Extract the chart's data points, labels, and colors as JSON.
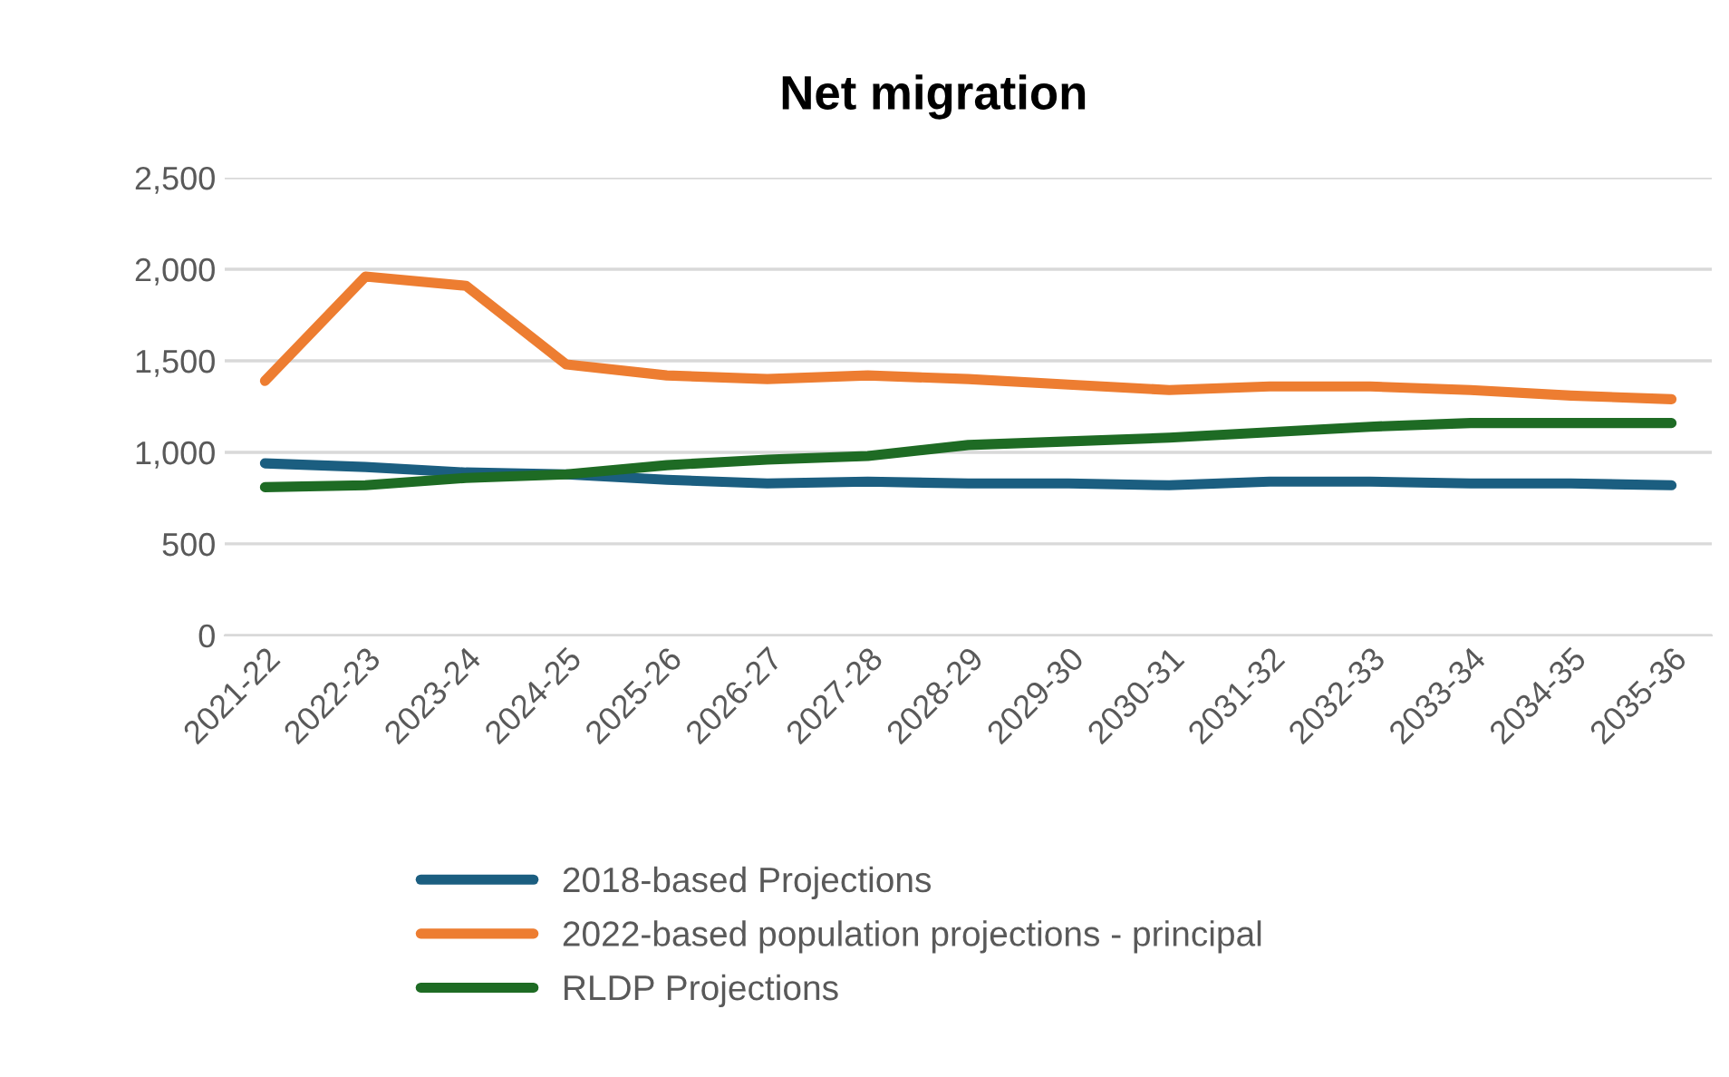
{
  "chart_data": {
    "type": "line",
    "title": "Net migration",
    "categories": [
      "2021-22",
      "2022-23",
      "2023-24",
      "2024-25",
      "2025-26",
      "2026-27",
      "2027-28",
      "2028-29",
      "2029-30",
      "2030-31",
      "2031-32",
      "2032-33",
      "2033-34",
      "2034-35",
      "2035-36"
    ],
    "series": [
      {
        "name": "2018-based Projections",
        "color": "#1b5e80",
        "values": [
          940,
          920,
          890,
          880,
          850,
          830,
          840,
          830,
          830,
          820,
          840,
          840,
          830,
          830,
          820
        ]
      },
      {
        "name": "2022-based population projections - principal",
        "color": "#ed7d31",
        "values": [
          1390,
          1960,
          1910,
          1480,
          1420,
          1400,
          1420,
          1400,
          1370,
          1340,
          1360,
          1360,
          1340,
          1310,
          1290
        ]
      },
      {
        "name": "RLDP Projections",
        "color": "#1e6b24",
        "values": [
          810,
          820,
          860,
          880,
          930,
          960,
          980,
          1040,
          1060,
          1080,
          1110,
          1140,
          1160,
          1160,
          1160
        ]
      }
    ],
    "ylim": [
      0,
      2500
    ],
    "yticks": [
      0,
      {
        "value": 500,
        "label": "500"
      },
      {
        "value": 1000,
        "label": "1,000"
      },
      {
        "value": 1500,
        "label": "1,500"
      },
      {
        "value": 2000,
        "label": "2,000"
      },
      {
        "value": 2500,
        "label": "2,500"
      }
    ],
    "grid": "y",
    "legend": "bottom",
    "marker": "none",
    "line_style": "solid"
  }
}
